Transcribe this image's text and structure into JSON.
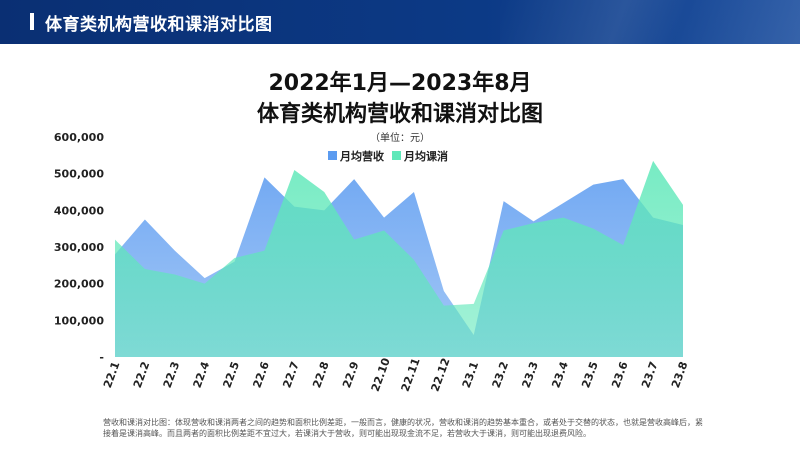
{
  "header": {
    "title": "体育类机构营收和课消对比图"
  },
  "footnote": "营收和课消对比图：体现营收和课消两者之间的趋势和面积比例差距，一般而言，健康的状况，营收和课消的趋势基本重合，或者处于交替的状态，也就是营收高峰后，紧接着是课消高峰。而且两者的面积比例差距不宜过大，若课消大于营收，则可能出现现金流不足，若营收大于课消，则可能出现退费风险。",
  "chart_data": {
    "type": "area",
    "title": "2022年1月—2023年8月",
    "subtitle": "体育类机构营收和课消对比图",
    "unit_note": "（单位：元）",
    "categories": [
      "22.1",
      "22.2",
      "22.3",
      "22.4",
      "22.5",
      "22.6",
      "22.7",
      "22.8",
      "22.9",
      "22.10",
      "22.11",
      "22.12",
      "23.1",
      "23.2",
      "23.3",
      "23.4",
      "23.5",
      "23.6",
      "23.7",
      "23.8"
    ],
    "y_ticks": [
      "-",
      "100,000",
      "200,000",
      "300,000",
      "400,000",
      "500,000",
      "600,000"
    ],
    "ylim": [
      0,
      600000
    ],
    "series": [
      {
        "name": "月均营收",
        "color": "#5b9bf0",
        "values": [
          280000,
          375000,
          290000,
          215000,
          260000,
          490000,
          410000,
          400000,
          485000,
          380000,
          450000,
          180000,
          60000,
          425000,
          370000,
          420000,
          470000,
          485000,
          380000,
          360000
        ]
      },
      {
        "name": "月均课消",
        "color": "#5fe8b9",
        "values": [
          320000,
          240000,
          225000,
          200000,
          270000,
          290000,
          510000,
          450000,
          320000,
          345000,
          265000,
          140000,
          145000,
          345000,
          365000,
          380000,
          350000,
          305000,
          535000,
          415000
        ]
      }
    ],
    "legend_position": "top-right"
  }
}
